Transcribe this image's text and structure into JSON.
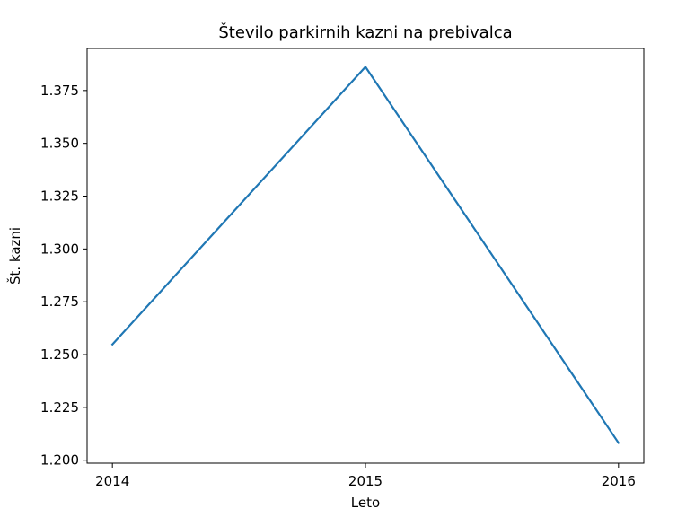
{
  "chart_data": {
    "type": "line",
    "title": "Število parkirnih kazni na prebivalca",
    "xlabel": "Leto",
    "ylabel": "Št. kazni",
    "x": [
      2014,
      2015,
      2016
    ],
    "x_tick_labels": [
      "2014",
      "2015",
      "2016"
    ],
    "y_ticks": [
      1.2,
      1.225,
      1.25,
      1.275,
      1.3,
      1.325,
      1.35,
      1.375
    ],
    "y_tick_labels": [
      "1.200",
      "1.225",
      "1.250",
      "1.275",
      "1.300",
      "1.325",
      "1.350",
      "1.375"
    ],
    "ylim": [
      1.1986,
      1.3949
    ],
    "xlim": [
      2013.9,
      2016.1
    ],
    "series": [
      {
        "values": [
          1.2548,
          1.3862,
          1.2082
        ],
        "color": "#1f77b4"
      }
    ],
    "grid": false,
    "legend": "none"
  }
}
